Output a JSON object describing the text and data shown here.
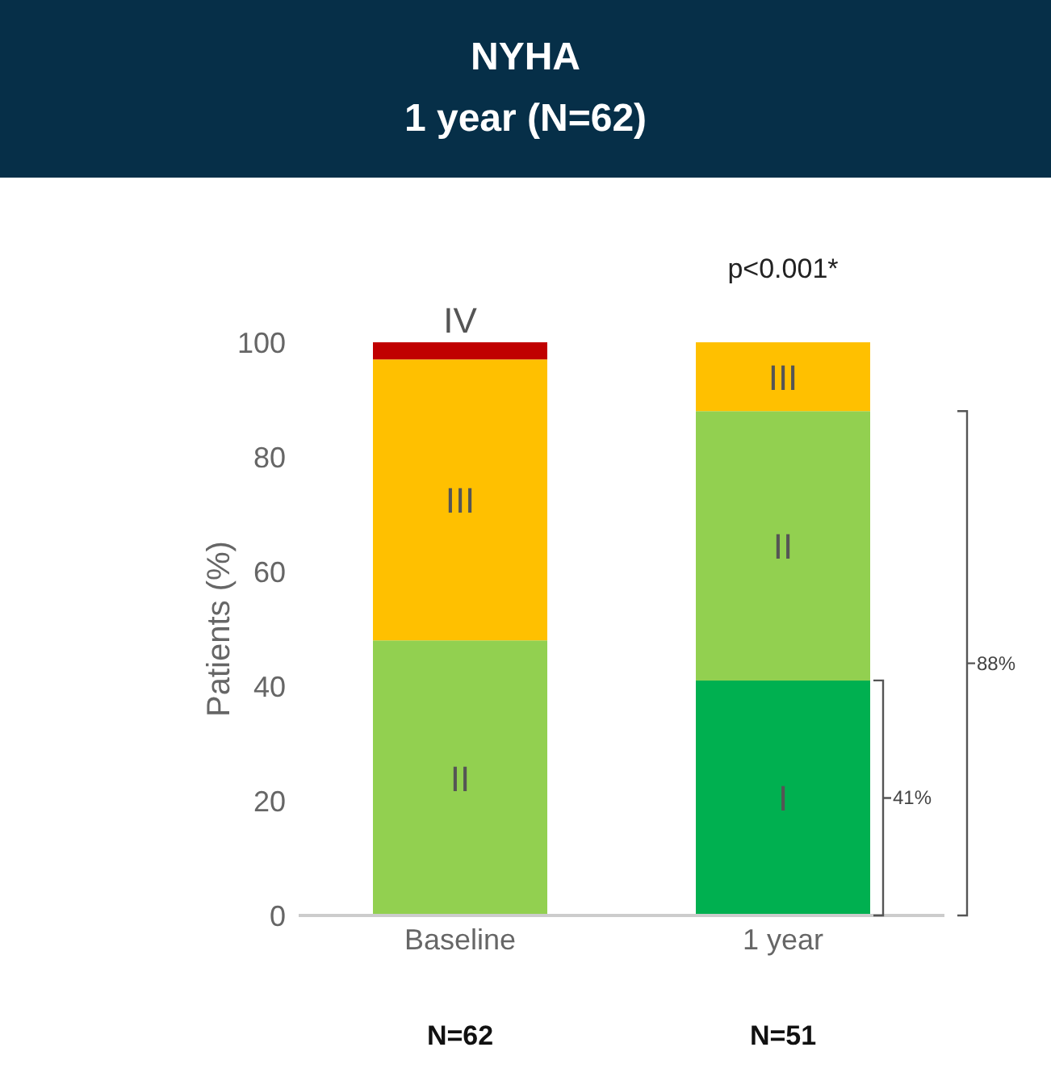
{
  "chart_data": {
    "type": "bar",
    "title": "NYHA",
    "subtitle": "1 year (N=62)",
    "ylabel": "Patients (%)",
    "categories": [
      "Baseline",
      "1 year"
    ],
    "stacked": true,
    "series": [
      {
        "name": "I",
        "color": "#00b050",
        "values": [
          0,
          41
        ]
      },
      {
        "name": "II",
        "color": "#92d050",
        "values": [
          48,
          47
        ]
      },
      {
        "name": "III",
        "color": "#ffc000",
        "values": [
          49,
          12
        ]
      },
      {
        "name": "IV",
        "color": "#c00000",
        "values": [
          3,
          0
        ]
      }
    ],
    "ylim": [
      0,
      100
    ],
    "yticks": [
      0,
      20,
      40,
      60,
      80,
      100
    ],
    "grid": false,
    "legend": false,
    "annotations": [
      {
        "text": "p<0.001*",
        "x": "1 year",
        "y": 100
      },
      "41%",
      "88%",
      "N=62",
      "N=51"
    ]
  }
}
